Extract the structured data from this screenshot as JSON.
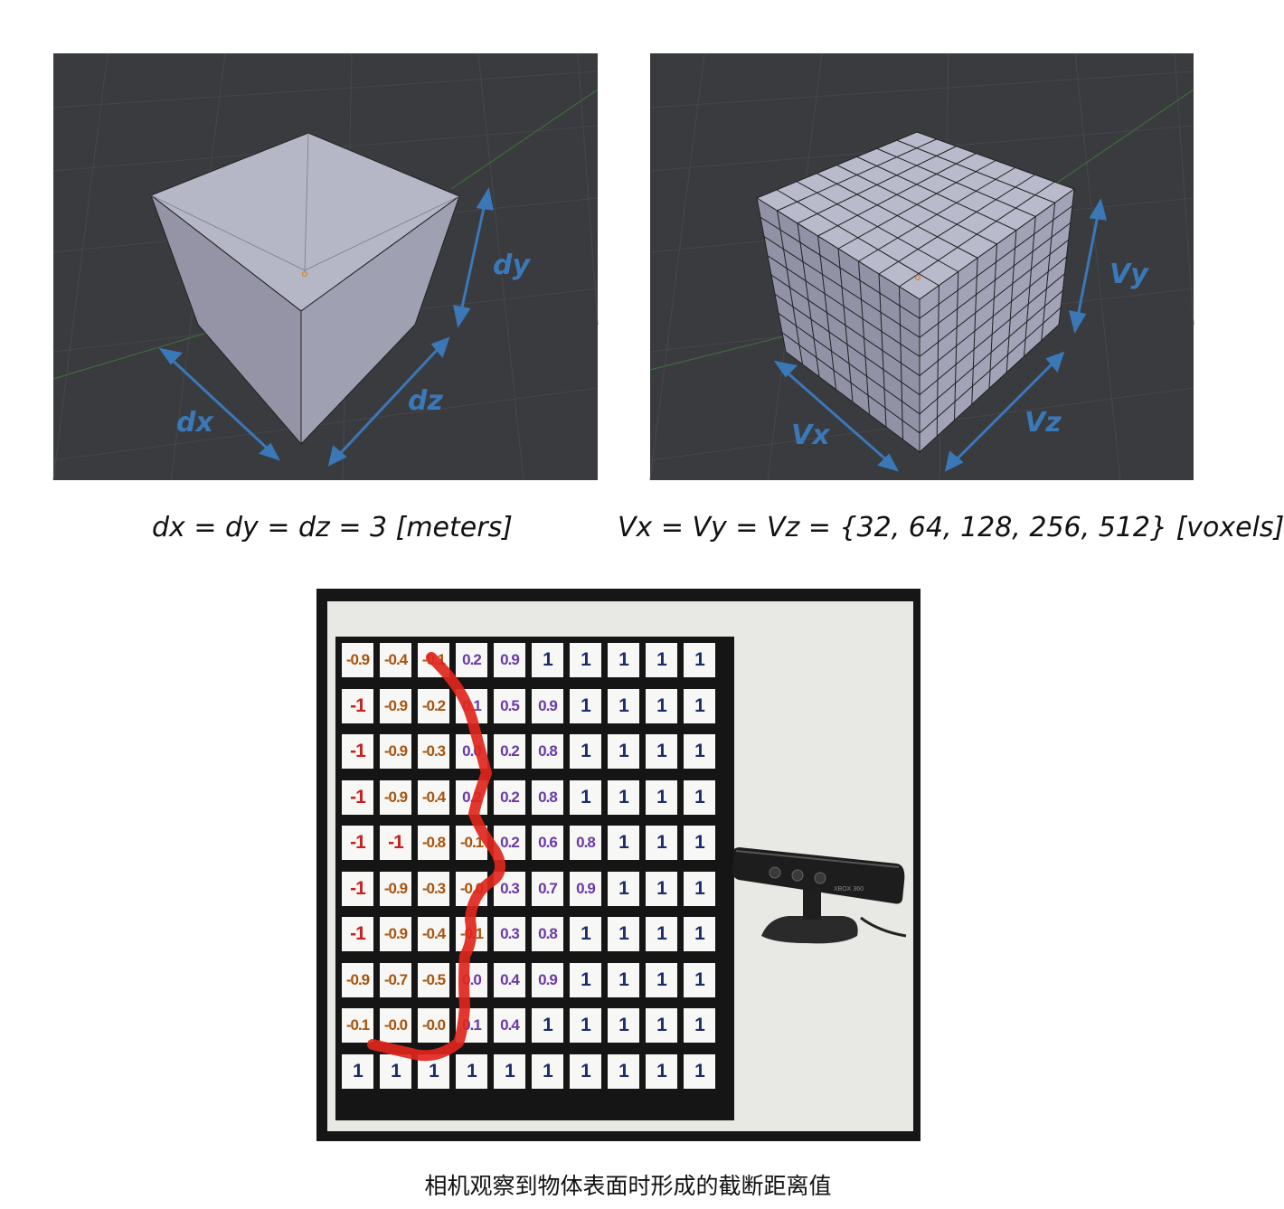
{
  "panels": {
    "voxel_volume_metric": {
      "labels": {
        "dx": "dx",
        "dy": "dy",
        "dz": "dz"
      }
    },
    "voxel_volume_grid": {
      "labels": {
        "vx": "Vx",
        "vy": "Vy",
        "vz": "Vz"
      }
    }
  },
  "formulas": {
    "metric": "dx = dy = dz = 3 [meters]",
    "voxels": "Vx = Vy = Vz = {32, 64, 128, 256, 512} [voxels]"
  },
  "tsdf": {
    "rows": [
      [
        "-0.9",
        "-0.4",
        "-0.1",
        "0.2",
        "0.9",
        "1",
        "1",
        "1",
        "1",
        "1"
      ],
      [
        "-1",
        "-0.9",
        "-0.2",
        "0.1",
        "0.5",
        "0.9",
        "1",
        "1",
        "1",
        "1"
      ],
      [
        "-1",
        "-0.9",
        "-0.3",
        "0.0",
        "0.2",
        "0.8",
        "1",
        "1",
        "1",
        "1"
      ],
      [
        "-1",
        "-0.9",
        "-0.4",
        "0.2",
        "0.2",
        "0.8",
        "1",
        "1",
        "1",
        "1"
      ],
      [
        "-1",
        "-1",
        "-0.8",
        "-0.1",
        "0.2",
        "0.6",
        "0.8",
        "1",
        "1",
        "1"
      ],
      [
        "-1",
        "-0.9",
        "-0.3",
        "-0.0",
        "0.3",
        "0.7",
        "0.9",
        "1",
        "1",
        "1"
      ],
      [
        "-1",
        "-0.9",
        "-0.4",
        "-0.1",
        "0.3",
        "0.8",
        "1",
        "1",
        "1",
        "1"
      ],
      [
        "-0.9",
        "-0.7",
        "-0.5",
        "0.0",
        "0.4",
        "0.9",
        "1",
        "1",
        "1",
        "1"
      ],
      [
        "-0.1",
        "-0.0",
        "-0.0",
        "0.1",
        "0.4",
        "1",
        "1",
        "1",
        "1",
        "1"
      ],
      [
        "1",
        "1",
        "1",
        "1",
        "1",
        "1",
        "1",
        "1",
        "1",
        "1"
      ]
    ],
    "colors": {
      "negative_strong": "#c81f1f",
      "negative": "#a8540e",
      "positive": "#6a3aa8",
      "one": "#1c2b6e",
      "surface_curve": "#e0261c"
    },
    "sensor_icon": "kinect-sensor",
    "sensor_brand": "XBOX 360"
  },
  "caption": "相机观察到物体表面时形成的截断距离值",
  "colors": {
    "viewport_bg": "#393b3e",
    "cube_face": "#a7a7b8",
    "arrow": "#3a78b8"
  }
}
